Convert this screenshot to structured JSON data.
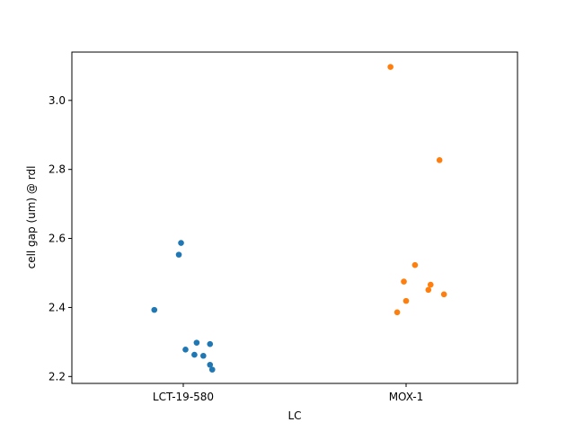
{
  "chart_data": {
    "type": "scatter",
    "title": "",
    "xlabel": "LC",
    "ylabel": "cell gap (um) @ rdl",
    "categories": [
      "LCT-19-580",
      "MOX-1"
    ],
    "ylim": [
      2.18,
      3.14
    ],
    "yticks": [
      2.2,
      2.4,
      2.6,
      2.8,
      3.0
    ],
    "ytick_labels": [
      "2.2",
      "2.4",
      "2.6",
      "2.8",
      "3.0"
    ],
    "grid": false,
    "legend": "none",
    "series": [
      {
        "category": "LCT-19-580",
        "color": "#1f77b4",
        "points": [
          {
            "jitter": -0.01,
            "y": 2.587
          },
          {
            "jitter": -0.02,
            "y": 2.553
          },
          {
            "jitter": -0.13,
            "y": 2.393
          },
          {
            "jitter": 0.06,
            "y": 2.298
          },
          {
            "jitter": 0.12,
            "y": 2.294
          },
          {
            "jitter": 0.01,
            "y": 2.278
          },
          {
            "jitter": 0.05,
            "y": 2.263
          },
          {
            "jitter": 0.09,
            "y": 2.26
          },
          {
            "jitter": 0.12,
            "y": 2.234
          },
          {
            "jitter": 0.13,
            "y": 2.22
          }
        ]
      },
      {
        "category": "MOX-1",
        "color": "#ff7f0e",
        "points": [
          {
            "jitter": -0.07,
            "y": 3.097
          },
          {
            "jitter": 0.15,
            "y": 2.827
          },
          {
            "jitter": 0.04,
            "y": 2.523
          },
          {
            "jitter": -0.01,
            "y": 2.475
          },
          {
            "jitter": 0.11,
            "y": 2.466
          },
          {
            "jitter": 0.1,
            "y": 2.451
          },
          {
            "jitter": 0.17,
            "y": 2.438
          },
          {
            "jitter": 0.0,
            "y": 2.419
          },
          {
            "jitter": -0.04,
            "y": 2.386
          }
        ]
      }
    ]
  }
}
